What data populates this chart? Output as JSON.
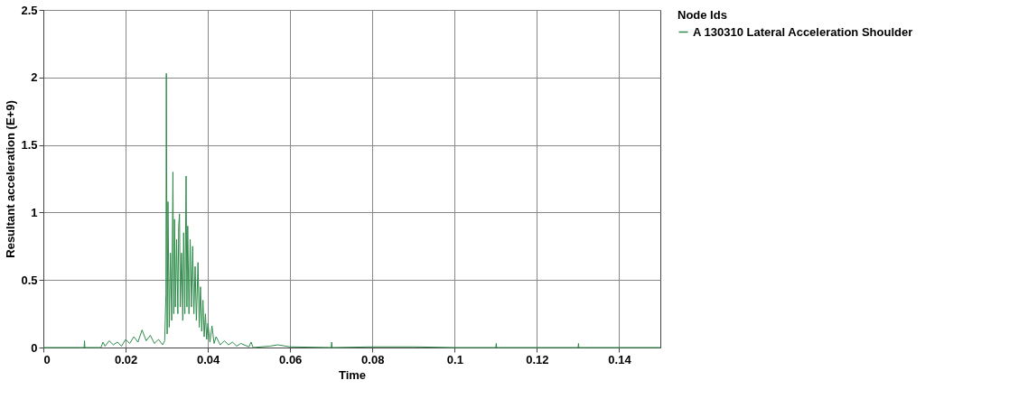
{
  "chart_data": {
    "type": "line",
    "xlabel": "Time",
    "ylabel": "Resultant acceleration (E+9)",
    "legend_title": "Node Ids",
    "legend": "right",
    "grid": true,
    "marker": "none",
    "line_style": "solid",
    "xlim": [
      0,
      0.15
    ],
    "xticks": [
      0,
      0.02,
      0.04,
      0.06,
      0.08,
      0.1,
      0.12,
      0.14
    ],
    "ylim": [
      0,
      2.5
    ],
    "yticks": [
      0,
      0.5,
      1,
      1.5,
      2,
      2.5
    ],
    "series": [
      {
        "name": "A 130310 Lateral Acceleration Shoulder",
        "color": "#2e8b4a",
        "x": [
          0,
          0.0099,
          0.01,
          0.0101,
          0.014,
          0.0145,
          0.015,
          0.016,
          0.017,
          0.018,
          0.019,
          0.02,
          0.021,
          0.022,
          0.023,
          0.024,
          0.025,
          0.026,
          0.027,
          0.028,
          0.029,
          0.0295,
          0.0298,
          0.0299,
          0.0301,
          0.0303,
          0.0306,
          0.0309,
          0.0312,
          0.0315,
          0.0317,
          0.0319,
          0.0321,
          0.0324,
          0.0327,
          0.0329,
          0.0331,
          0.0333,
          0.0336,
          0.0339,
          0.0341,
          0.0344,
          0.0347,
          0.0349,
          0.0351,
          0.0354,
          0.0357,
          0.036,
          0.0363,
          0.0366,
          0.0369,
          0.0372,
          0.0376,
          0.0379,
          0.0382,
          0.0385,
          0.0388,
          0.0391,
          0.0394,
          0.0397,
          0.04,
          0.0405,
          0.041,
          0.0415,
          0.042,
          0.043,
          0.044,
          0.045,
          0.046,
          0.047,
          0.048,
          0.05,
          0.0505,
          0.051,
          0.055,
          0.057,
          0.06,
          0.07,
          0.0701,
          0.0702,
          0.08,
          0.09,
          0.1,
          0.11,
          0.1101,
          0.1102,
          0.13,
          0.1301,
          0.1302,
          0.15
        ],
        "values": [
          0,
          0,
          0.05,
          0,
          0,
          0.04,
          0.01,
          0.05,
          0.02,
          0.04,
          0.01,
          0.06,
          0.03,
          0.08,
          0.04,
          0.13,
          0.05,
          0.09,
          0.03,
          0.06,
          0.02,
          0.05,
          0.4,
          2.03,
          0.1,
          1.08,
          0.15,
          0.7,
          0.2,
          1.3,
          0.25,
          0.95,
          0.3,
          0.8,
          0.25,
          0.9,
          0.99,
          0.3,
          0.7,
          0.2,
          0.85,
          0.25,
          1.27,
          0.3,
          0.9,
          0.25,
          0.8,
          0.3,
          0.75,
          0.25,
          0.6,
          0.2,
          0.63,
          0.15,
          0.45,
          0.12,
          0.35,
          0.08,
          0.25,
          0.06,
          0.18,
          0.04,
          0.16,
          0.03,
          0.08,
          0.02,
          0.05,
          0.02,
          0.04,
          0.01,
          0.03,
          0.005,
          0.04,
          0,
          0.01,
          0.02,
          0.005,
          0,
          0.04,
          0,
          0.005,
          0.005,
          0,
          0,
          0.03,
          0,
          0,
          0.03,
          0,
          0
        ]
      }
    ]
  }
}
